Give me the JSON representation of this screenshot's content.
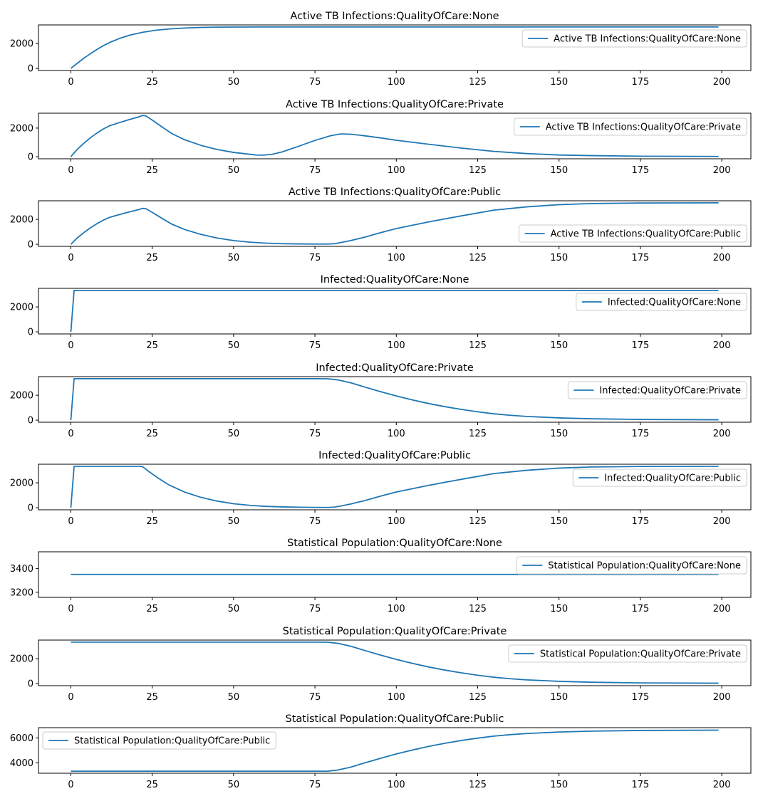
{
  "chart_data": [
    {
      "type": "line",
      "title": "Active TB Infections:QualityOfCare:None",
      "x_ticks": [
        0,
        25,
        50,
        75,
        100,
        125,
        150,
        175,
        200
      ],
      "y_ticks": [
        0,
        2000
      ],
      "xlim": [
        -9.95,
        208.95
      ],
      "ylim": [
        -166,
        3490
      ],
      "legend_loc": "upper right",
      "series": [
        {
          "name": "Active TB Infections:QualityOfCare:None",
          "points": [
            [
              0,
              0
            ],
            [
              2,
              420
            ],
            [
              4,
              820
            ],
            [
              6,
              1180
            ],
            [
              8,
              1520
            ],
            [
              10,
              1830
            ],
            [
              12,
              2090
            ],
            [
              15,
              2410
            ],
            [
              18,
              2660
            ],
            [
              22,
              2900
            ],
            [
              26,
              3060
            ],
            [
              30,
              3160
            ],
            [
              35,
              3240
            ],
            [
              40,
              3290
            ],
            [
              45,
              3310
            ],
            [
              50,
              3320
            ],
            [
              60,
              3324
            ],
            [
              80,
              3325
            ],
            [
              199,
              3325
            ]
          ]
        }
      ]
    },
    {
      "type": "line",
      "title": "Active TB Infections:QualityOfCare:Private",
      "x_ticks": [
        0,
        25,
        50,
        75,
        100,
        125,
        150,
        175,
        200
      ],
      "y_ticks": [
        0,
        2000
      ],
      "xlim": [
        -9.95,
        208.95
      ],
      "ylim": [
        -145,
        3040
      ],
      "legend_loc": "upper right",
      "series": [
        {
          "name": "Active TB Infections:QualityOfCare:Private",
          "points": [
            [
              0,
              0
            ],
            [
              2,
              520
            ],
            [
              4,
              940
            ],
            [
              6,
              1320
            ],
            [
              8,
              1650
            ],
            [
              10,
              1940
            ],
            [
              12,
              2170
            ],
            [
              15,
              2390
            ],
            [
              18,
              2600
            ],
            [
              21,
              2790
            ],
            [
              22,
              2880
            ],
            [
              23,
              2860
            ],
            [
              25,
              2560
            ],
            [
              28,
              2080
            ],
            [
              31,
              1620
            ],
            [
              35,
              1180
            ],
            [
              40,
              790
            ],
            [
              45,
              500
            ],
            [
              50,
              300
            ],
            [
              55,
              170
            ],
            [
              57,
              115
            ],
            [
              59,
              110
            ],
            [
              62,
              170
            ],
            [
              65,
              340
            ],
            [
              70,
              730
            ],
            [
              75,
              1140
            ],
            [
              80,
              1480
            ],
            [
              83,
              1590
            ],
            [
              86,
              1570
            ],
            [
              90,
              1470
            ],
            [
              95,
              1320
            ],
            [
              100,
              1150
            ],
            [
              110,
              870
            ],
            [
              120,
              600
            ],
            [
              130,
              370
            ],
            [
              140,
              220
            ],
            [
              150,
              120
            ],
            [
              160,
              75
            ],
            [
              175,
              35
            ],
            [
              199,
              15
            ]
          ]
        }
      ]
    },
    {
      "type": "line",
      "title": "Active TB Infections:QualityOfCare:Public",
      "x_ticks": [
        0,
        25,
        50,
        75,
        100,
        125,
        150,
        175,
        200
      ],
      "y_ticks": [
        0,
        2000
      ],
      "xlim": [
        -9.95,
        208.95
      ],
      "ylim": [
        -166,
        3490
      ],
      "legend_loc": "lower right",
      "series": [
        {
          "name": "Active TB Infections:QualityOfCare:Public",
          "points": [
            [
              0,
              0
            ],
            [
              2,
              520
            ],
            [
              4,
              940
            ],
            [
              6,
              1320
            ],
            [
              8,
              1650
            ],
            [
              10,
              1940
            ],
            [
              12,
              2170
            ],
            [
              15,
              2390
            ],
            [
              18,
              2600
            ],
            [
              21,
              2790
            ],
            [
              22,
              2880
            ],
            [
              23,
              2860
            ],
            [
              25,
              2560
            ],
            [
              28,
              2080
            ],
            [
              31,
              1620
            ],
            [
              35,
              1180
            ],
            [
              40,
              790
            ],
            [
              45,
              500
            ],
            [
              50,
              300
            ],
            [
              55,
              170
            ],
            [
              60,
              90
            ],
            [
              65,
              50
            ],
            [
              70,
              30
            ],
            [
              75,
              20
            ],
            [
              79,
              20
            ],
            [
              81,
              50
            ],
            [
              83,
              140
            ],
            [
              86,
              300
            ],
            [
              90,
              550
            ],
            [
              95,
              920
            ],
            [
              100,
              1260
            ],
            [
              110,
              1800
            ],
            [
              120,
              2280
            ],
            [
              130,
              2740
            ],
            [
              140,
              3000
            ],
            [
              150,
              3180
            ],
            [
              160,
              3270
            ],
            [
              175,
              3310
            ],
            [
              199,
              3325
            ]
          ]
        }
      ]
    },
    {
      "type": "line",
      "title": "Infected:QualityOfCare:None",
      "x_ticks": [
        0,
        25,
        50,
        75,
        100,
        125,
        150,
        175,
        200
      ],
      "y_ticks": [
        0,
        2000
      ],
      "xlim": [
        -9.95,
        208.95
      ],
      "ylim": [
        -166,
        3490
      ],
      "legend_loc": "upper right",
      "series": [
        {
          "name": "Infected:QualityOfCare:None",
          "points": [
            [
              0,
              0
            ],
            [
              1,
              3325
            ],
            [
              199,
              3325
            ]
          ]
        }
      ]
    },
    {
      "type": "line",
      "title": "Infected:QualityOfCare:Private",
      "x_ticks": [
        0,
        25,
        50,
        75,
        100,
        125,
        150,
        175,
        200
      ],
      "y_ticks": [
        0,
        2000
      ],
      "xlim": [
        -9.95,
        208.95
      ],
      "ylim": [
        -166,
        3490
      ],
      "legend_loc": "upper right",
      "series": [
        {
          "name": "Infected:QualityOfCare:Private",
          "points": [
            [
              0,
              0
            ],
            [
              1,
              3325
            ],
            [
              75,
              3325
            ],
            [
              79,
              3320
            ],
            [
              82,
              3230
            ],
            [
              86,
              3000
            ],
            [
              90,
              2680
            ],
            [
              95,
              2300
            ],
            [
              100,
              1940
            ],
            [
              105,
              1620
            ],
            [
              110,
              1330
            ],
            [
              115,
              1080
            ],
            [
              120,
              860
            ],
            [
              125,
              670
            ],
            [
              130,
              510
            ],
            [
              135,
              390
            ],
            [
              140,
              300
            ],
            [
              150,
              180
            ],
            [
              160,
              110
            ],
            [
              175,
              55
            ],
            [
              199,
              30
            ]
          ]
        }
      ]
    },
    {
      "type": "line",
      "title": "Infected:QualityOfCare:Public",
      "x_ticks": [
        0,
        25,
        50,
        75,
        100,
        125,
        150,
        175,
        200
      ],
      "y_ticks": [
        0,
        2000
      ],
      "xlim": [
        -9.95,
        208.95
      ],
      "ylim": [
        -166,
        3490
      ],
      "legend_loc": "upper right",
      "series": [
        {
          "name": "Infected:QualityOfCare:Public",
          "points": [
            [
              0,
              0
            ],
            [
              1,
              3325
            ],
            [
              21,
              3325
            ],
            [
              22,
              3300
            ],
            [
              24,
              2900
            ],
            [
              27,
              2350
            ],
            [
              30,
              1850
            ],
            [
              35,
              1250
            ],
            [
              40,
              830
            ],
            [
              45,
              530
            ],
            [
              50,
              320
            ],
            [
              55,
              190
            ],
            [
              60,
              110
            ],
            [
              65,
              65
            ],
            [
              70,
              40
            ],
            [
              75,
              25
            ],
            [
              79,
              20
            ],
            [
              81,
              50
            ],
            [
              83,
              140
            ],
            [
              86,
              300
            ],
            [
              90,
              550
            ],
            [
              95,
              920
            ],
            [
              100,
              1260
            ],
            [
              110,
              1800
            ],
            [
              120,
              2280
            ],
            [
              130,
              2740
            ],
            [
              140,
              3000
            ],
            [
              150,
              3180
            ],
            [
              160,
              3270
            ],
            [
              175,
              3310
            ],
            [
              199,
              3325
            ]
          ]
        }
      ]
    },
    {
      "type": "line",
      "title": "Statistical Population:QualityOfCare:None",
      "x_ticks": [
        0,
        25,
        50,
        75,
        100,
        125,
        150,
        175,
        200
      ],
      "y_ticks": [
        3200,
        3400
      ],
      "xlim": [
        -9.95,
        208.95
      ],
      "ylim": [
        3157,
        3540
      ],
      "legend_loc": "upper right",
      "series": [
        {
          "name": "Statistical Population:QualityOfCare:None",
          "points": [
            [
              0,
              3350
            ],
            [
              199,
              3350
            ]
          ]
        }
      ]
    },
    {
      "type": "line",
      "title": "Statistical Population:QualityOfCare:Private",
      "x_ticks": [
        0,
        25,
        50,
        75,
        100,
        125,
        150,
        175,
        200
      ],
      "y_ticks": [
        0,
        2000
      ],
      "xlim": [
        -9.95,
        208.95
      ],
      "ylim": [
        -166,
        3490
      ],
      "legend_loc": "upper right",
      "series": [
        {
          "name": "Statistical Population:QualityOfCare:Private",
          "points": [
            [
              0,
              3325
            ],
            [
              75,
              3325
            ],
            [
              79,
              3320
            ],
            [
              82,
              3230
            ],
            [
              86,
              3000
            ],
            [
              90,
              2680
            ],
            [
              95,
              2300
            ],
            [
              100,
              1940
            ],
            [
              105,
              1620
            ],
            [
              110,
              1330
            ],
            [
              115,
              1080
            ],
            [
              120,
              860
            ],
            [
              125,
              670
            ],
            [
              130,
              510
            ],
            [
              135,
              390
            ],
            [
              140,
              300
            ],
            [
              150,
              180
            ],
            [
              160,
              110
            ],
            [
              175,
              55
            ],
            [
              199,
              30
            ]
          ]
        }
      ]
    },
    {
      "type": "line",
      "title": "Statistical Population:QualityOfCare:Public",
      "x_ticks": [
        0,
        25,
        50,
        75,
        100,
        125,
        150,
        175,
        200
      ],
      "y_ticks": [
        4000,
        6000
      ],
      "xlim": [
        -9.95,
        208.95
      ],
      "ylim": [
        3162,
        6820
      ],
      "legend_loc": "upper left",
      "series": [
        {
          "name": "Statistical Population:QualityOfCare:Public",
          "points": [
            [
              0,
              3325
            ],
            [
              75,
              3325
            ],
            [
              79,
              3330
            ],
            [
              82,
              3420
            ],
            [
              86,
              3650
            ],
            [
              90,
              3970
            ],
            [
              95,
              4350
            ],
            [
              100,
              4710
            ],
            [
              105,
              5030
            ],
            [
              110,
              5320
            ],
            [
              115,
              5570
            ],
            [
              120,
              5790
            ],
            [
              125,
              5980
            ],
            [
              130,
              6140
            ],
            [
              135,
              6260
            ],
            [
              140,
              6350
            ],
            [
              150,
              6470
            ],
            [
              160,
              6540
            ],
            [
              175,
              6595
            ],
            [
              199,
              6620
            ]
          ]
        }
      ]
    }
  ]
}
